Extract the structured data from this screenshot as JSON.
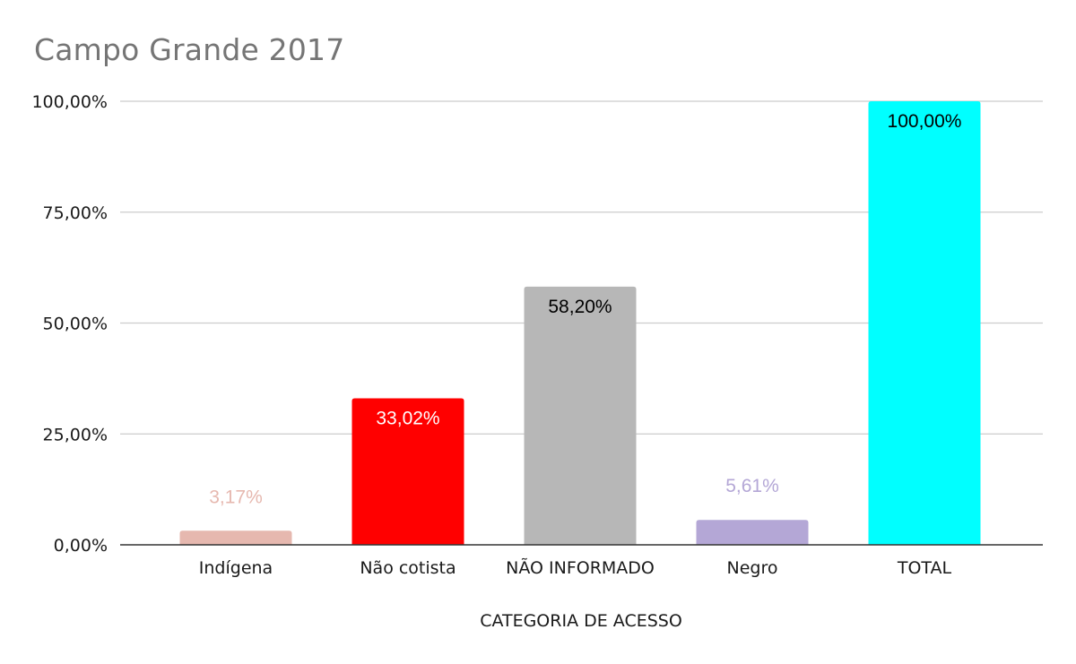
{
  "chart_data": {
    "type": "bar",
    "title": "Campo Grande 2017",
    "xlabel": "CATEGORIA DE ACESSO",
    "ylabel": "",
    "categories": [
      "Indígena",
      "Não cotista",
      "NÃO INFORMADO",
      "Negro",
      "TOTAL"
    ],
    "values": [
      3.17,
      33.02,
      58.2,
      5.61,
      100.0
    ],
    "value_labels": [
      "3,17%",
      "33,02%",
      "58,20%",
      "5,61%",
      "100,00%"
    ],
    "ylim": [
      0,
      100
    ],
    "yticks": [
      0,
      25,
      50,
      75,
      100
    ],
    "ytick_labels": [
      "0,00%",
      "25,00%",
      "50,00%",
      "75,00%",
      "100,00%"
    ],
    "bar_colors": [
      "#e6b8af",
      "#ff0000",
      "#b7b7b7",
      "#b4a7d6",
      "#00ffff"
    ],
    "label_colors": [
      "#e6b8af",
      "#ffffff",
      "#000000",
      "#b4a7d6",
      "#000000"
    ],
    "label_positions": [
      "outside",
      "inside",
      "inside",
      "outside",
      "inside"
    ],
    "grid": true,
    "legend": "none"
  }
}
